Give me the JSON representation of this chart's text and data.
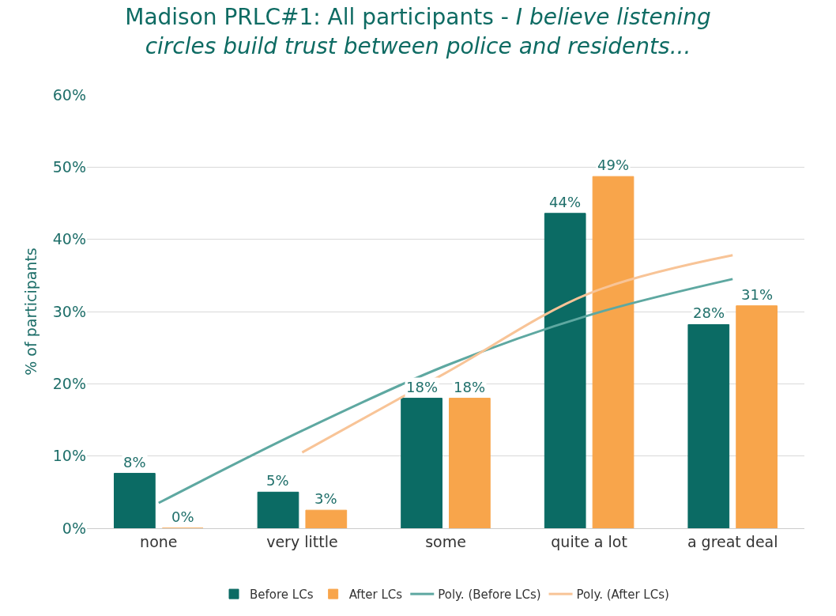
{
  "chart_data": {
    "type": "bar",
    "title": "Madison PRLC#1: All participants - I believe listening circles build trust between police and residents...",
    "ylabel": "% of participants",
    "categories": [
      "none",
      "very little",
      "some",
      "quite a lot",
      "a great deal"
    ],
    "series": [
      {
        "name": "Before LCs",
        "color": "#0b6b64",
        "values": [
          7.6,
          5,
          18,
          43.6,
          28.2
        ],
        "value_labels": [
          "8%",
          "5%",
          "18%",
          "44%",
          "28%"
        ]
      },
      {
        "name": "After LCs",
        "color": "#f8a54b",
        "values": [
          0,
          2.5,
          18,
          48.7,
          30.8
        ],
        "value_labels": [
          "0%",
          "3%",
          "18%",
          "49%",
          "31%"
        ]
      },
      {
        "name": "Poly. (Before LCs)",
        "type": "line",
        "color": "#5ea8a1",
        "x": [
          "none",
          "very little",
          "some",
          "quite a lot",
          "a great deal"
        ],
        "values": [
          3.5,
          13.5,
          22.5,
          29.5,
          34.5
        ]
      },
      {
        "name": "Poly. (After LCs)",
        "type": "line",
        "color": "#f8c497",
        "x": [
          "very little",
          "some",
          "quite a lot",
          "a great deal"
        ],
        "values": [
          10.5,
          21.5,
          32.5,
          37.8
        ]
      }
    ],
    "ylim": [
      0,
      60
    ],
    "yticks": [
      {
        "value": 0,
        "label": "0%"
      },
      {
        "value": 10,
        "label": "10%"
      },
      {
        "value": 20,
        "label": "20%"
      },
      {
        "value": 30,
        "label": "30%"
      },
      {
        "value": 40,
        "label": "40%"
      },
      {
        "value": 50,
        "label": "50%"
      },
      {
        "value": 60,
        "label": "60%"
      }
    ],
    "grid": "y",
    "legend": "bottom"
  }
}
